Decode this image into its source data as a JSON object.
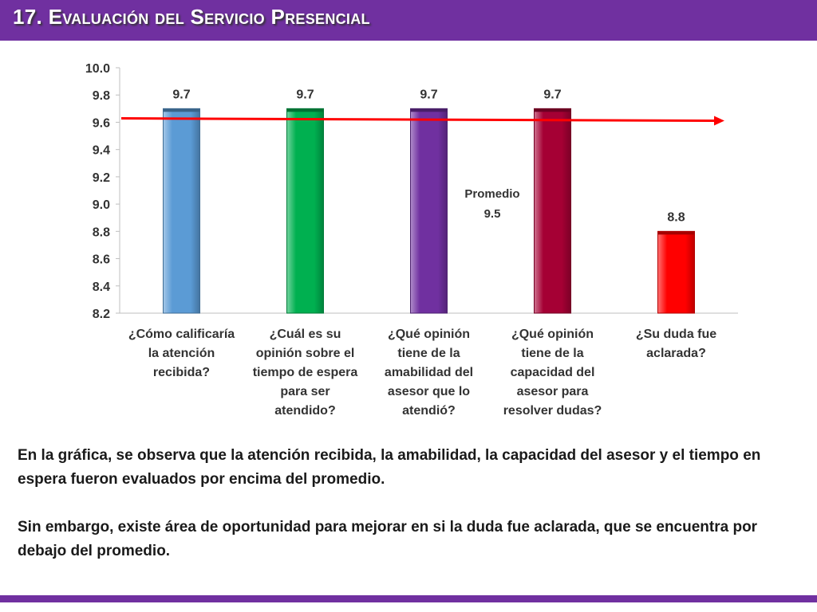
{
  "slide": {
    "title": "17. Evaluación del Servicio Presencial"
  },
  "chart_data": {
    "type": "bar",
    "categories": [
      "¿Cómo calificaría\nla atención\nrecibida?",
      "¿Cuál es su\nopinión sobre el\ntiempo de espera\npara ser\natendido?",
      "¿Qué opinión\ntiene de la\namabilidad del\nasesor que lo\natendió?",
      "¿Qué opinión\ntiene de la\ncapacidad del\nasesor para\nresolver dudas?",
      "¿Su duda fue\naclarada?"
    ],
    "values": [
      9.7,
      9.7,
      9.7,
      9.7,
      8.8
    ],
    "data_labels": [
      "9.7",
      "9.7",
      "9.7",
      "9.7",
      "8.8"
    ],
    "colors": [
      "#5b9bd5",
      "#00b050",
      "#7030a0",
      "#a50034",
      "#ff0000"
    ],
    "ylim": [
      8.2,
      10.0
    ],
    "yticks": [
      "8.2",
      "8.4",
      "8.6",
      "8.8",
      "9.0",
      "9.2",
      "9.4",
      "9.6",
      "9.8",
      "10.0"
    ],
    "grid": false,
    "average": {
      "value": 9.5,
      "label_line1": "Promedio",
      "label_line2": "9.5",
      "color": "#ff0000"
    },
    "title": "",
    "xlabel": "",
    "ylabel": ""
  },
  "summary": {
    "paragraph1": "En la gráfica, se observa que la atención recibida, la amabilidad, la capacidad del asesor y el tiempo en espera fueron evaluados por encima del promedio.",
    "paragraph2": "Sin embargo, existe área de oportunidad para mejorar en si la duda fue aclarada, que se encuentra por debajo del promedio."
  }
}
